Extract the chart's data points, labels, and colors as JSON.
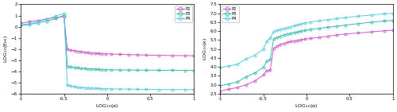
{
  "legend_labels": [
    "P2",
    "P3",
    "P4"
  ],
  "colors_left": [
    "#CC55CC",
    "#33BBAA",
    "#55CCDD"
  ],
  "colors_right": [
    "#CC55CC",
    "#33BBAA",
    "#55CCDD"
  ],
  "left_xlim": [
    -1,
    1
  ],
  "left_ylim": [
    -6,
    2
  ],
  "right_xlim": [
    -1,
    1
  ],
  "right_ylim": [
    2.5,
    7.5
  ],
  "left_yticks": [
    -6,
    -5,
    -4,
    -3,
    -2,
    -1,
    0,
    1,
    2
  ],
  "right_yticks": [
    2.5,
    3.0,
    3.5,
    4.0,
    4.5,
    5.0,
    5.5,
    6.0,
    6.5,
    7.0,
    7.5
  ],
  "xticks": [
    -1,
    -0.5,
    0,
    0.5,
    1
  ],
  "x_alpha": [
    -1.0,
    -0.9,
    -0.8,
    -0.7,
    -0.6,
    -0.5,
    -0.46,
    -0.42,
    -0.38,
    -0.34,
    -0.3,
    -0.26,
    -0.22,
    -0.18,
    -0.14,
    -0.1,
    -0.06,
    -0.02,
    0.05,
    0.15,
    0.25,
    0.35,
    0.45,
    0.6,
    0.75,
    0.9,
    1.0
  ],
  "left_P2": [
    0.3,
    0.45,
    0.55,
    0.7,
    0.82,
    0.9,
    -2.05,
    -2.1,
    -2.15,
    -2.2,
    -2.25,
    -2.28,
    -2.32,
    -2.35,
    -2.38,
    -2.4,
    -2.42,
    -2.43,
    -2.45,
    -2.48,
    -2.5,
    -2.52,
    -2.54,
    -2.56,
    -2.58,
    -2.59,
    -2.6
  ],
  "left_P3": [
    0.1,
    0.2,
    0.35,
    0.5,
    0.72,
    1.02,
    -3.55,
    -3.6,
    -3.65,
    -3.68,
    -3.72,
    -3.74,
    -3.77,
    -3.79,
    -3.81,
    -3.82,
    -3.84,
    -3.85,
    -3.86,
    -3.87,
    -3.88,
    -3.89,
    -3.89,
    -3.9,
    -3.9,
    -3.91,
    -3.91
  ],
  "left_P4": [
    0.15,
    0.28,
    0.45,
    0.65,
    0.95,
    1.18,
    -5.25,
    -5.32,
    -5.38,
    -5.42,
    -5.45,
    -5.47,
    -5.49,
    -5.51,
    -5.52,
    -5.53,
    -5.55,
    -5.56,
    -5.57,
    -5.58,
    -5.59,
    -5.6,
    -5.61,
    -5.62,
    -5.63,
    -5.63,
    -5.63
  ],
  "right_P2": [
    2.65,
    2.75,
    2.85,
    3.0,
    3.2,
    3.55,
    3.78,
    3.82,
    5.05,
    5.15,
    5.25,
    5.32,
    5.38,
    5.42,
    5.45,
    5.48,
    5.52,
    5.55,
    5.6,
    5.65,
    5.72,
    5.78,
    5.84,
    5.9,
    5.96,
    6.02,
    6.05
  ],
  "right_P3": [
    2.95,
    3.05,
    3.15,
    3.45,
    3.65,
    3.98,
    4.32,
    4.42,
    5.55,
    5.65,
    5.72,
    5.78,
    5.84,
    5.88,
    5.92,
    5.96,
    6.0,
    6.04,
    6.1,
    6.16,
    6.22,
    6.28,
    6.34,
    6.42,
    6.5,
    6.57,
    6.6
  ],
  "right_P4": [
    3.95,
    4.05,
    4.15,
    4.45,
    4.65,
    4.98,
    5.45,
    5.6,
    5.98,
    6.04,
    6.1,
    6.15,
    6.2,
    6.25,
    6.3,
    6.35,
    6.4,
    6.45,
    6.52,
    6.58,
    6.64,
    6.7,
    6.76,
    6.84,
    6.9,
    6.97,
    7.0
  ]
}
